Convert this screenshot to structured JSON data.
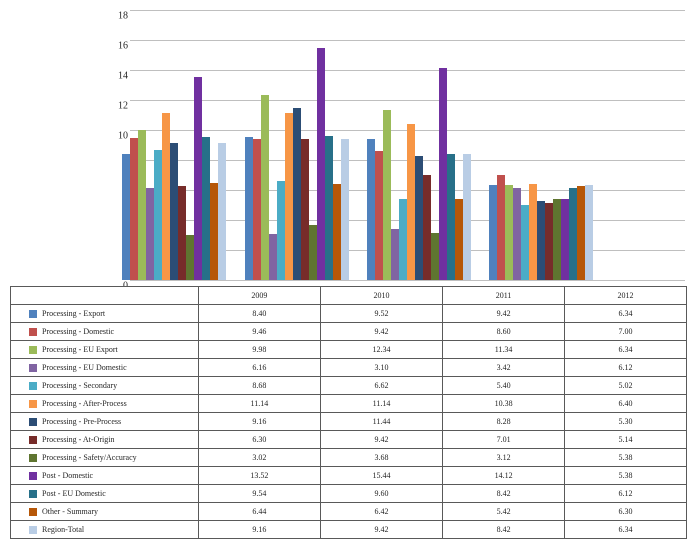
{
  "chart": {
    "type": "bar",
    "y_ticks": [
      0,
      2,
      4,
      6,
      8,
      10,
      12,
      14,
      16,
      18
    ],
    "y_max": 18,
    "categories": [
      "2009",
      "2010",
      "2011",
      "2012"
    ],
    "grid_color": "#bfbfbf",
    "group_positions": [
      8,
      30,
      52,
      74
    ]
  },
  "series": [
    {
      "label": "Processing - Export",
      "color": "#4f81bd",
      "values": [
        8.4,
        9.52,
        9.42,
        6.34
      ]
    },
    {
      "label": "Processing - Domestic",
      "color": "#c0504d",
      "values": [
        9.46,
        9.42,
        8.6,
        7.0
      ]
    },
    {
      "label": "Processing - EU Export",
      "color": "#9bbb59",
      "values": [
        9.98,
        12.34,
        11.34,
        6.34
      ]
    },
    {
      "label": "Processing - EU Domestic",
      "color": "#8064a2",
      "values": [
        6.16,
        3.1,
        3.42,
        6.12
      ]
    },
    {
      "label": "Processing - Secondary",
      "color": "#4bacc6",
      "values": [
        8.68,
        6.62,
        5.4,
        5.02
      ]
    },
    {
      "label": "Processing - After-Process",
      "color": "#f79646",
      "values": [
        11.14,
        11.14,
        10.38,
        6.4
      ]
    },
    {
      "label": "Processing - Pre-Process",
      "color": "#2c4d75",
      "values": [
        9.16,
        11.44,
        8.28,
        5.3
      ]
    },
    {
      "label": "Processing - At-Origin",
      "color": "#772c2a",
      "values": [
        6.3,
        9.42,
        7.01,
        5.14
      ]
    },
    {
      "label": "Processing - Safety/Accuracy",
      "color": "#5f7530",
      "values": [
        3.02,
        3.68,
        3.12,
        5.38
      ]
    },
    {
      "label": "Post - Domestic",
      "color": "#7030a0",
      "values": [
        13.52,
        15.44,
        14.12,
        5.38
      ]
    },
    {
      "label": "Post - EU Domestic",
      "color": "#277089",
      "values": [
        9.54,
        9.6,
        8.42,
        6.12
      ]
    },
    {
      "label": "Other - Summary",
      "color": "#b65708",
      "values": [
        6.44,
        6.42,
        5.42,
        6.3
      ]
    },
    {
      "label": "Region-Total",
      "color": "#b9cde5",
      "values": [
        9.16,
        9.42,
        8.42,
        6.34
      ]
    }
  ]
}
